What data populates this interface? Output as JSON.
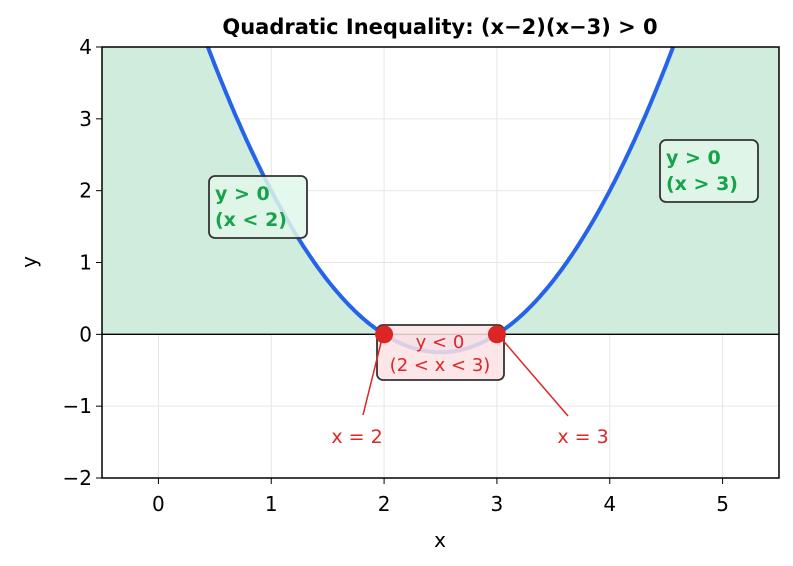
{
  "chart_data": {
    "type": "line",
    "title": "Quadratic Inequality: (x−2)(x−3) > 0",
    "xlabel": "x",
    "ylabel": "y",
    "xlim": [
      -0.5,
      5.5
    ],
    "ylim": [
      -2,
      4
    ],
    "grid": true,
    "xticks": [
      "0",
      "1",
      "2",
      "3",
      "4",
      "5"
    ],
    "xtick_values": [
      0,
      1,
      2,
      3,
      4,
      5
    ],
    "yticks": [
      "−2",
      "−1",
      "0",
      "1",
      "2",
      "3",
      "4"
    ],
    "ytick_values": [
      -2,
      -1,
      0,
      1,
      2,
      3,
      4
    ],
    "function": "(x-2)(x-3)",
    "roots": [
      2,
      3
    ],
    "colors": {
      "curve": "#2563eb",
      "positive_fill": "#d0ecdc",
      "negative_fill": "#c9c3e6",
      "points": "#dc2626",
      "positive_text": "#16a34a",
      "negative_text": "#dc2626"
    },
    "annotations": {
      "left_region": [
        "y > 0",
        "(x < 2)"
      ],
      "right_region": [
        "y > 0",
        "(x > 3)"
      ],
      "middle_region": [
        "y < 0",
        "(2 < x < 3)"
      ],
      "root_left": "x = 2",
      "root_right": "x = 3"
    }
  }
}
